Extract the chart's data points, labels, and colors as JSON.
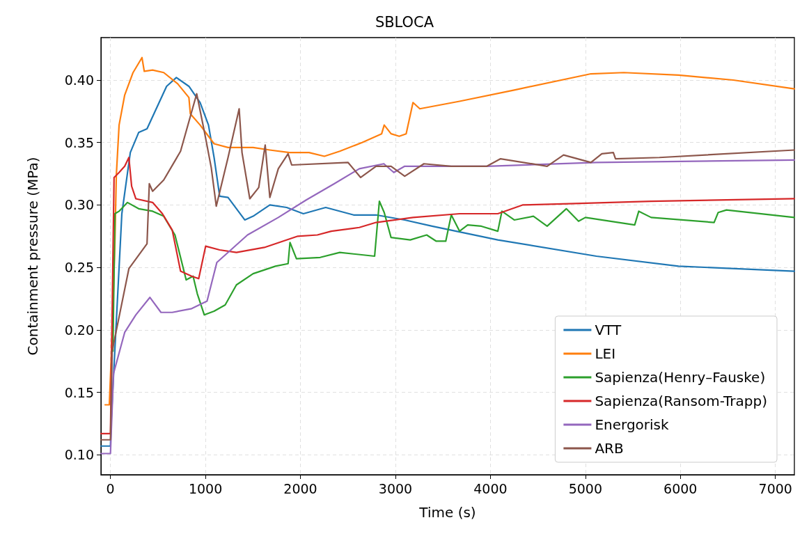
{
  "chart_data": {
    "type": "line",
    "title": "SBLOCA",
    "xlabel": "Time (s)",
    "ylabel": "Containment pressure (MPa)",
    "xlim": [
      -100,
      7200
    ],
    "ylim": [
      0.084,
      0.434
    ],
    "xticks": [
      0,
      1000,
      2000,
      3000,
      4000,
      5000,
      6000,
      7000
    ],
    "yticks": [
      {
        "value": 0.1,
        "label": "0.10"
      },
      {
        "value": 0.15,
        "label": "0.15"
      },
      {
        "value": 0.2,
        "label": "0.20"
      },
      {
        "value": 0.25,
        "label": "0.25"
      },
      {
        "value": 0.3,
        "label": "0.30"
      },
      {
        "value": 0.35,
        "label": "0.35"
      },
      {
        "value": 0.4,
        "label": "0.40"
      }
    ],
    "grid": true,
    "legend": "bottom right",
    "line_style": "solid",
    "series": [
      {
        "name": "VTT",
        "color": "#1f77b4",
        "x": [
          -100,
          0,
          10,
          120,
          209,
          297,
          385,
          591,
          694,
          826,
          944,
          1032,
          1091,
          1150,
          1238,
          1414,
          1502,
          1678,
          1855,
          2031,
          2266,
          2560,
          2796,
          3098,
          3386,
          4078,
          5116,
          5980,
          7200
        ],
        "values": [
          0.107,
          0.107,
          0.13,
          0.293,
          0.342,
          0.358,
          0.361,
          0.395,
          0.402,
          0.395,
          0.382,
          0.364,
          0.338,
          0.307,
          0.306,
          0.288,
          0.291,
          0.3,
          0.298,
          0.293,
          0.298,
          0.292,
          0.292,
          0.288,
          0.283,
          0.272,
          0.259,
          0.251,
          0.247
        ]
      },
      {
        "name": "LEI",
        "color": "#ff7f0e",
        "x": [
          -56,
          -12,
          20,
          47,
          62,
          91,
          150,
          238,
          332,
          356,
          444,
          561,
          708,
          826,
          841,
          944,
          1091,
          1238,
          1502,
          1678,
          1884,
          2090,
          2252,
          2414,
          2649,
          2855,
          2882,
          2954,
          3040,
          3113,
          3185,
          3257,
          3675,
          4251,
          5058,
          5404,
          5980,
          6557,
          7200
        ],
        "values": [
          0.14,
          0.14,
          0.2,
          0.271,
          0.324,
          0.364,
          0.388,
          0.406,
          0.418,
          0.407,
          0.408,
          0.406,
          0.397,
          0.386,
          0.373,
          0.364,
          0.349,
          0.346,
          0.346,
          0.344,
          0.342,
          0.342,
          0.339,
          0.343,
          0.35,
          0.357,
          0.364,
          0.357,
          0.355,
          0.357,
          0.382,
          0.377,
          0.383,
          0.392,
          0.405,
          0.406,
          0.404,
          0.4,
          0.393
        ]
      },
      {
        "name": "Sapienza(Henry–Fauske)",
        "color": "#2ca02c",
        "x": [
          26,
          47,
          91,
          179,
          297,
          444,
          561,
          679,
          797,
          870,
          914,
          988,
          1091,
          1208,
          1326,
          1502,
          1737,
          1870,
          1890,
          1958,
          2208,
          2414,
          2781,
          2831,
          2882,
          2954,
          3156,
          3329,
          3430,
          3530,
          3588,
          3675,
          3761,
          3905,
          4078,
          4121,
          4251,
          4453,
          4597,
          4799,
          4928,
          5000,
          5519,
          5562,
          5692,
          6355,
          6398,
          6485,
          7200
        ],
        "values": [
          0.183,
          0.293,
          0.295,
          0.302,
          0.297,
          0.295,
          0.291,
          0.276,
          0.24,
          0.243,
          0.229,
          0.212,
          0.215,
          0.22,
          0.236,
          0.245,
          0.251,
          0.253,
          0.27,
          0.257,
          0.258,
          0.262,
          0.259,
          0.303,
          0.294,
          0.274,
          0.272,
          0.276,
          0.271,
          0.271,
          0.292,
          0.279,
          0.284,
          0.283,
          0.279,
          0.295,
          0.288,
          0.291,
          0.283,
          0.297,
          0.287,
          0.29,
          0.284,
          0.295,
          0.29,
          0.286,
          0.294,
          0.296,
          0.29
        ]
      },
      {
        "name": "Sapienza(Ransom-Trapp)",
        "color": "#d62728",
        "x": [
          -100,
          0,
          38,
          91,
          150,
          194,
          223,
          267,
          444,
          547,
          650,
          738,
          855,
          929,
          1002,
          1150,
          1326,
          1620,
          1972,
          2178,
          2325,
          2620,
          2796,
          3185,
          3675,
          4078,
          4338,
          4827,
          5692,
          7200
        ],
        "values": [
          0.117,
          0.117,
          0.322,
          0.326,
          0.331,
          0.338,
          0.315,
          0.305,
          0.302,
          0.293,
          0.28,
          0.247,
          0.243,
          0.241,
          0.267,
          0.264,
          0.262,
          0.266,
          0.275,
          0.276,
          0.279,
          0.282,
          0.286,
          0.29,
          0.293,
          0.293,
          0.3,
          0.301,
          0.303,
          0.305
        ]
      },
      {
        "name": "Energorisk",
        "color": "#9467bd",
        "x": [
          -100,
          0,
          32,
          150,
          267,
          415,
          532,
          650,
          855,
          1017,
          1120,
          1208,
          1443,
          1767,
          2061,
          2355,
          2620,
          2878,
          2983,
          3098,
          3963,
          5116,
          7200
        ],
        "values": [
          0.101,
          0.101,
          0.165,
          0.198,
          0.212,
          0.226,
          0.214,
          0.214,
          0.217,
          0.223,
          0.254,
          0.26,
          0.276,
          0.29,
          0.304,
          0.317,
          0.329,
          0.333,
          0.326,
          0.331,
          0.331,
          0.334,
          0.336
        ]
      },
      {
        "name": "ARB",
        "color": "#8c564b",
        "x": [
          -100,
          0,
          18,
          106,
          194,
          385,
          409,
          444,
          561,
          738,
          908,
          988,
          1061,
          1114,
          1238,
          1355,
          1385,
          1467,
          1561,
          1629,
          1678,
          1767,
          1870,
          1908,
          2502,
          2634,
          2796,
          2954,
          3098,
          3300,
          3588,
          3963,
          4107,
          4597,
          4770,
          5058,
          5173,
          5294,
          5317,
          5779,
          7200
        ],
        "values": [
          0.112,
          0.112,
          0.183,
          0.216,
          0.249,
          0.269,
          0.317,
          0.311,
          0.32,
          0.343,
          0.389,
          0.359,
          0.33,
          0.299,
          0.338,
          0.377,
          0.342,
          0.305,
          0.314,
          0.348,
          0.306,
          0.329,
          0.341,
          0.332,
          0.334,
          0.322,
          0.331,
          0.331,
          0.323,
          0.333,
          0.331,
          0.331,
          0.337,
          0.331,
          0.34,
          0.334,
          0.341,
          0.342,
          0.337,
          0.338,
          0.344
        ]
      }
    ]
  }
}
